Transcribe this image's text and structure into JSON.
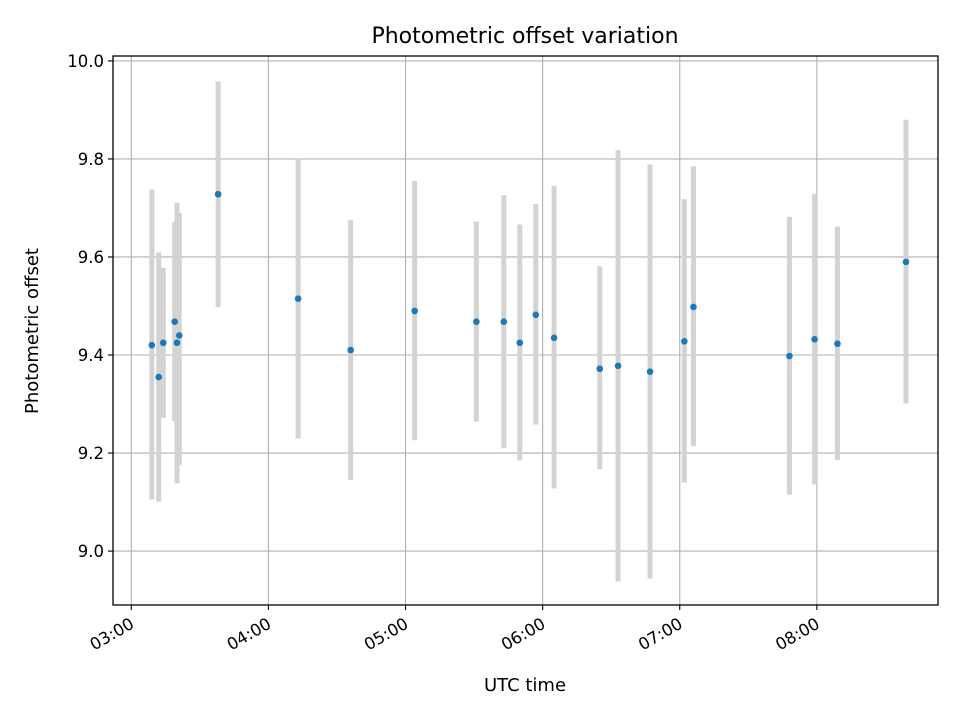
{
  "chart_data": {
    "type": "scatter",
    "title": "Photometric offset variation",
    "xlabel": "UTC time",
    "ylabel": "Photometric offset",
    "x_unit": "UTC time of day (HH:MM)",
    "xlim": [
      "02:52",
      "08:53"
    ],
    "ylim": [
      8.89,
      10.01
    ],
    "xticks": [
      "03:00",
      "04:00",
      "05:00",
      "06:00",
      "07:00",
      "08:00"
    ],
    "yticks": [
      9.0,
      9.2,
      9.4,
      9.6,
      9.8,
      10.0
    ],
    "ytick_labels": [
      "9.0",
      "9.2",
      "9.4",
      "9.6",
      "9.8",
      "10.0"
    ],
    "grid": true,
    "legend": "none",
    "colors": {
      "point": "#1f77b4",
      "errorbar": "#d3d3d3",
      "grid": "#b0b0b0"
    },
    "points": [
      {
        "x": "03:09",
        "y": 9.42,
        "ymin": 9.105,
        "ymax": 9.738
      },
      {
        "x": "03:12",
        "y": 9.355,
        "ymin": 9.101,
        "ymax": 9.609
      },
      {
        "x": "03:14",
        "y": 9.425,
        "ymin": 9.272,
        "ymax": 9.578
      },
      {
        "x": "03:19",
        "y": 9.468,
        "ymin": 9.265,
        "ymax": 9.671
      },
      {
        "x": "03:20",
        "y": 9.425,
        "ymin": 9.138,
        "ymax": 9.711
      },
      {
        "x": "03:21",
        "y": 9.44,
        "ymin": 9.175,
        "ymax": 9.69
      },
      {
        "x": "03:38",
        "y": 9.728,
        "ymin": 9.498,
        "ymax": 9.958
      },
      {
        "x": "04:13",
        "y": 9.515,
        "ymin": 9.23,
        "ymax": 9.801
      },
      {
        "x": "04:36",
        "y": 9.41,
        "ymin": 9.145,
        "ymax": 9.675
      },
      {
        "x": "05:04",
        "y": 9.49,
        "ymin": 9.226,
        "ymax": 9.755
      },
      {
        "x": "05:31",
        "y": 9.468,
        "ymin": 9.264,
        "ymax": 9.672
      },
      {
        "x": "05:43",
        "y": 9.468,
        "ymin": 9.21,
        "ymax": 9.726
      },
      {
        "x": "05:50",
        "y": 9.425,
        "ymin": 9.185,
        "ymax": 9.666
      },
      {
        "x": "05:57",
        "y": 9.482,
        "ymin": 9.258,
        "ymax": 9.708
      },
      {
        "x": "06:05",
        "y": 9.435,
        "ymin": 9.128,
        "ymax": 9.745
      },
      {
        "x": "06:25",
        "y": 9.372,
        "ymin": 9.167,
        "ymax": 9.581
      },
      {
        "x": "06:33",
        "y": 9.378,
        "ymin": 8.938,
        "ymax": 9.818
      },
      {
        "x": "06:47",
        "y": 9.366,
        "ymin": 8.944,
        "ymax": 9.789
      },
      {
        "x": "07:02",
        "y": 9.428,
        "ymin": 9.14,
        "ymax": 9.718
      },
      {
        "x": "07:06",
        "y": 9.498,
        "ymin": 9.214,
        "ymax": 9.785
      },
      {
        "x": "07:48",
        "y": 9.398,
        "ymin": 9.115,
        "ymax": 9.682
      },
      {
        "x": "07:59",
        "y": 9.432,
        "ymin": 9.136,
        "ymax": 9.729
      },
      {
        "x": "08:09",
        "y": 9.423,
        "ymin": 9.186,
        "ymax": 9.662
      },
      {
        "x": "08:39",
        "y": 9.59,
        "ymin": 9.301,
        "ymax": 9.88
      }
    ]
  }
}
